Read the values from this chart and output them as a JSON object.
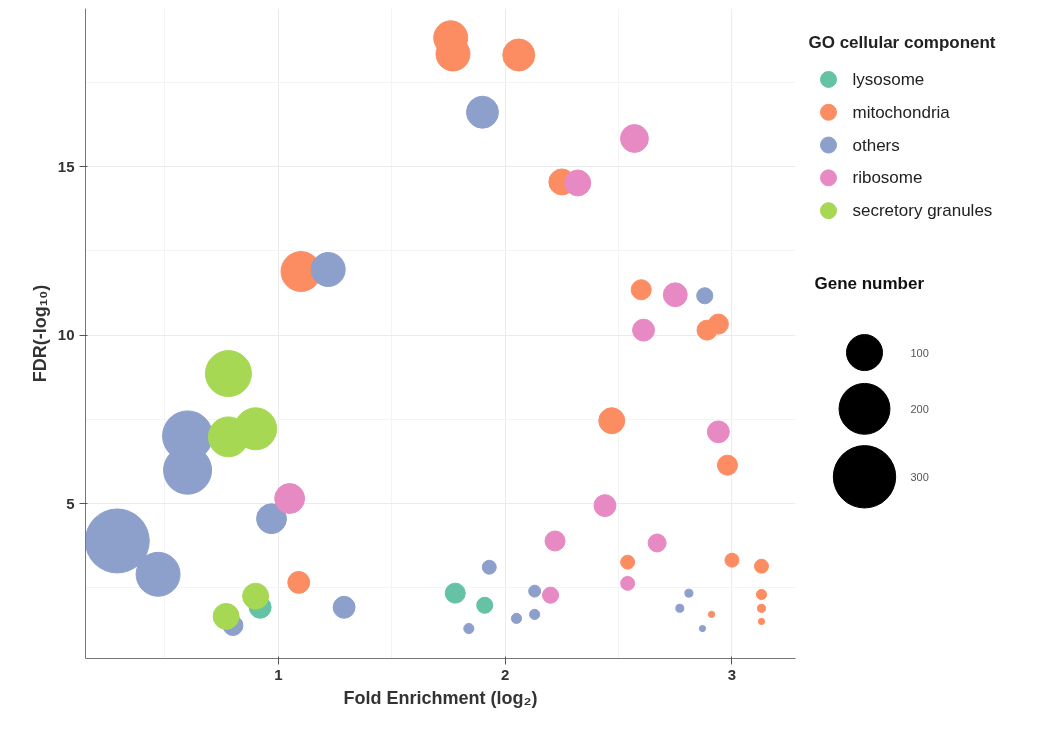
{
  "chart_data": {
    "type": "bubble",
    "xlabel": "Fold Enrichment (log₂)",
    "ylabel": "FDR(-log₁₀)",
    "legend_title": "GO cellular component",
    "annotations": [
      "Gene number"
    ],
    "xlim": [
      0.15,
      3.28
    ],
    "ylim": [
      0.4,
      19.7
    ],
    "xticks": [
      1,
      2,
      3
    ],
    "yticks": [
      5,
      10,
      15
    ],
    "grid": true,
    "legend": "right",
    "size_legend": [
      100,
      200,
      300
    ],
    "series": [
      {
        "name": "lysosome",
        "color": "#66c2a5",
        "x": [
          1.78,
          1.91,
          0.92
        ],
        "values": [
          2.34,
          1.98,
          1.92
        ],
        "sizes": [
          31,
          20,
          37
        ]
      },
      {
        "name": "mitochondria",
        "color": "#fc8d62",
        "x": [
          1.76,
          1.77,
          2.06,
          2.25,
          1.1,
          2.6,
          2.89,
          2.94,
          1.09,
          2.47,
          2.98,
          2.54,
          3.0,
          3.13,
          3.13,
          3.13,
          2.91,
          3.13
        ],
        "values": [
          18.83,
          18.35,
          18.32,
          14.55,
          11.89,
          11.35,
          10.15,
          10.33,
          2.66,
          7.46,
          6.14,
          3.26,
          3.32,
          3.14,
          2.3,
          1.89,
          1.71,
          1.5
        ],
        "sizes": [
          89,
          89,
          79,
          52,
          123,
          31,
          31,
          31,
          37,
          52,
          31,
          15,
          15,
          15,
          8,
          5,
          3,
          3
        ]
      },
      {
        "name": "others",
        "color": "#8da0cb",
        "x": [
          0.29,
          0.47,
          0.6,
          0.6,
          0.97,
          0.8,
          1.29,
          1.22,
          1.9,
          1.93,
          2.13,
          2.13,
          2.05,
          1.84,
          2.81,
          2.77,
          2.88,
          2.87
        ],
        "values": [
          3.89,
          2.9,
          7.01,
          5.99,
          4.55,
          1.38,
          1.92,
          11.95,
          16.62,
          3.11,
          2.4,
          1.71,
          1.59,
          1.29,
          2.34,
          1.89,
          11.17,
          1.29
        ],
        "sizes": [
          316,
          149,
          193,
          178,
          69,
          31,
          37,
          89,
          79,
          15,
          11,
          8,
          8,
          8,
          5,
          5,
          20,
          3
        ]
      },
      {
        "name": "ribosome",
        "color": "#e78ac3",
        "x": [
          2.57,
          2.32,
          2.75,
          2.61,
          1.05,
          2.94,
          2.44,
          2.22,
          2.67,
          2.2,
          2.54
        ],
        "values": [
          15.84,
          14.52,
          11.2,
          10.15,
          5.15,
          7.13,
          4.94,
          3.89,
          3.83,
          2.28,
          2.63
        ],
        "sizes": [
          60,
          52,
          44,
          37,
          69,
          37,
          37,
          31,
          25,
          20,
          15
        ]
      },
      {
        "name": "secretory granules",
        "color": "#a6d854",
        "x": [
          0.78,
          0.78,
          0.9,
          0.9,
          0.77
        ],
        "values": [
          8.86,
          6.98,
          7.22,
          2.25,
          1.65
        ],
        "sizes": [
          163,
          123,
          136,
          52,
          52
        ]
      }
    ]
  }
}
